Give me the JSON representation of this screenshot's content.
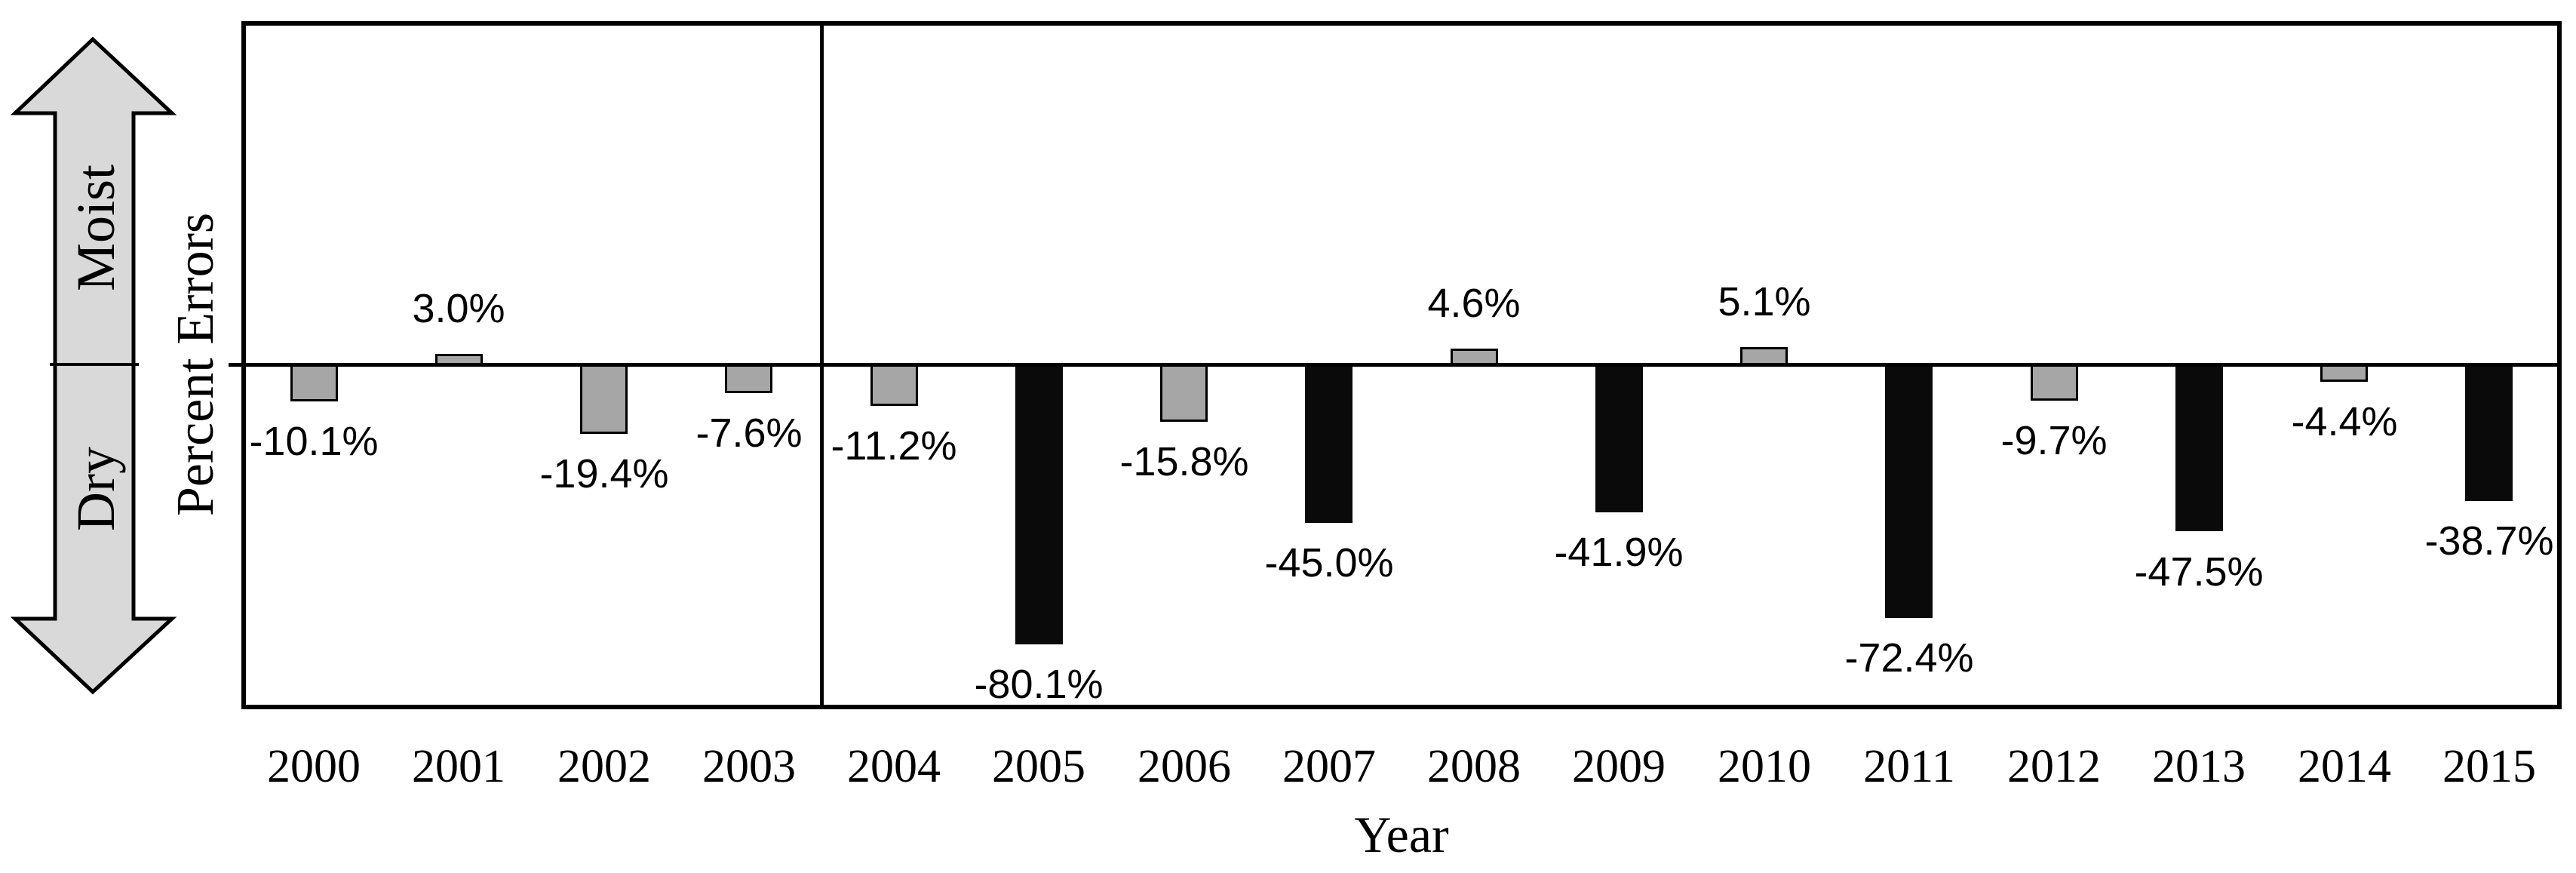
{
  "chart_data": {
    "type": "bar",
    "title": "",
    "xlabel": "Year",
    "ylabel": "Percent Errors",
    "categories": [
      "2000",
      "2001",
      "2002",
      "2003",
      "2004",
      "2005",
      "2006",
      "2007",
      "2008",
      "2009",
      "2010",
      "2011",
      "2012",
      "2013",
      "2014",
      "2015"
    ],
    "values": [
      -10.1,
      3.0,
      -19.4,
      -7.6,
      -11.2,
      -80.1,
      -15.8,
      -45.0,
      4.6,
      -41.9,
      5.1,
      -72.4,
      -9.7,
      -47.5,
      -4.4,
      -38.7
    ],
    "value_labels": [
      "-10.1%",
      "3.0%",
      "-19.4%",
      "-7.6%",
      "-11.2%",
      "-80.1%",
      "-15.8%",
      "-45.0%",
      "4.6%",
      "-41.9%",
      "5.1%",
      "-72.4%",
      "-9.7%",
      "-47.5%",
      "-4.4%",
      "-38.7%"
    ],
    "bar_colors": [
      "gray",
      "gray",
      "gray",
      "gray",
      "gray",
      "black",
      "gray",
      "black",
      "gray",
      "black",
      "gray",
      "black",
      "gray",
      "black",
      "gray",
      "black"
    ],
    "palette": {
      "gray_fill": "#a6a6a6",
      "black_fill": "#0a0a0a",
      "outline": "#000000",
      "line": "#000000"
    },
    "ylim": [
      -98,
      98
    ],
    "grid": false,
    "legend": null,
    "zero_line": true,
    "divider_after_index": 3,
    "orientation_arrow": {
      "up_label": "Moist",
      "down_label": "Dry",
      "fill": "#d9d9d9",
      "outline": "#000000"
    }
  }
}
